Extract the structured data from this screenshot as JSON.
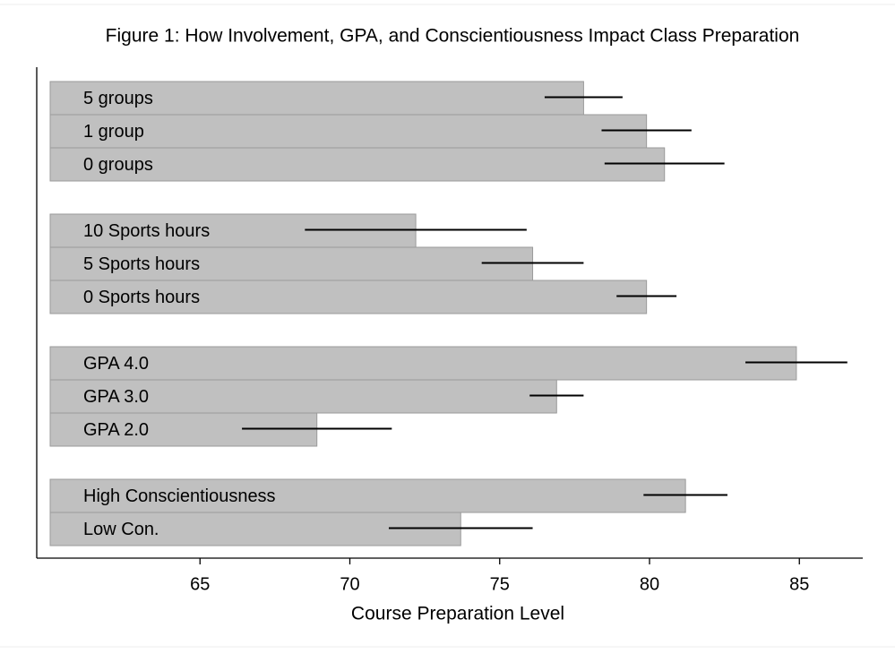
{
  "chart_data": {
    "type": "bar_error",
    "orientation": "horizontal",
    "title": "Figure 1: How Involvement, GPA, and Conscientiousness Impact Class Preparation",
    "x_label": "Course Preparation Level",
    "color": "#c0c0c0",
    "xlim": [
      60,
      87
    ],
    "xticks": [
      65,
      70,
      75,
      80,
      85
    ],
    "groups": [
      {
        "categories": [
          "5 groups",
          "1 group",
          "0 groups"
        ],
        "values": [
          77.8,
          79.9,
          80.5
        ],
        "errors": [
          1.3,
          1.5,
          2.0
        ]
      },
      {
        "categories": [
          "10 Sports hours",
          "5 Sports hours",
          "0 Sports hours"
        ],
        "values": [
          72.2,
          76.1,
          79.9
        ],
        "errors": [
          3.7,
          1.7,
          1.0
        ]
      },
      {
        "categories": [
          "GPA 4.0",
          "GPA 3.0",
          "GPA 2.0"
        ],
        "values": [
          84.9,
          76.9,
          68.9
        ],
        "errors": [
          1.7,
          0.9,
          2.5
        ]
      },
      {
        "categories": [
          "High Conscientiousness",
          "Low Con."
        ],
        "values": [
          81.2,
          73.7
        ],
        "errors": [
          1.4,
          2.4
        ]
      }
    ]
  }
}
